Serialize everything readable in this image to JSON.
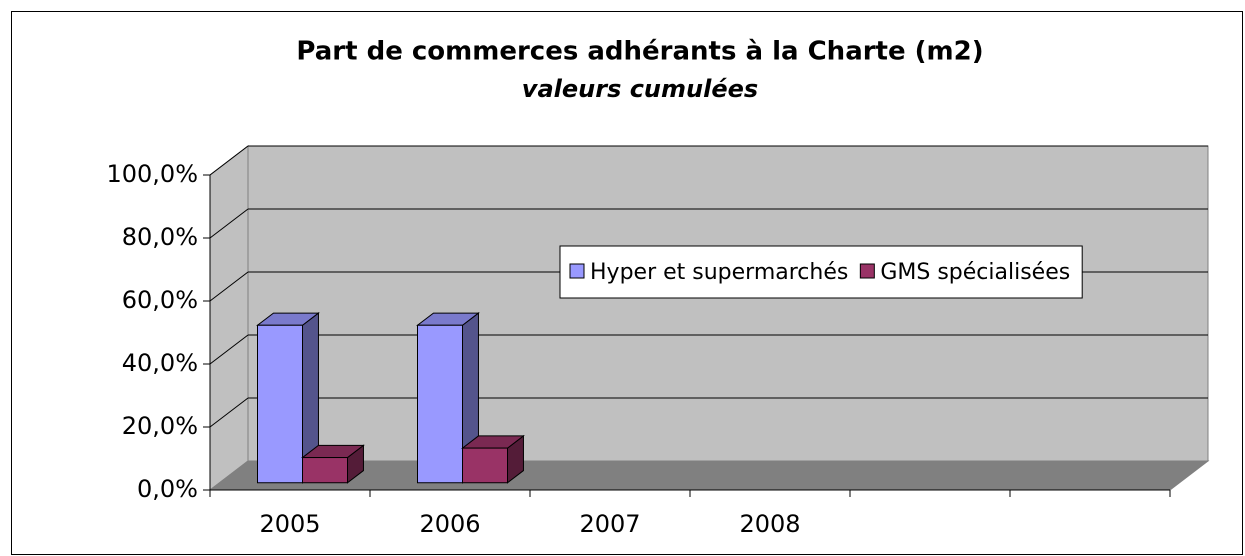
{
  "chart_data": {
    "type": "bar3d",
    "title": "Part de commerces adhérants à la Charte (m2)",
    "subtitle": "valeurs cumulées",
    "categories": [
      "2005",
      "2006",
      "2007",
      "2008",
      null,
      null
    ],
    "series": [
      {
        "name": "Hyper et supermarchés",
        "color": "#9999ff",
        "values": [
          50,
          50,
          null,
          null,
          null,
          null
        ]
      },
      {
        "name": "GMS spécialisées",
        "color": "#993366",
        "values": [
          8,
          11,
          null,
          null,
          null,
          null
        ]
      }
    ],
    "ylim": [
      0,
      100
    ],
    "yticks": [
      {
        "value": 0,
        "label": "0,0%"
      },
      {
        "value": 20,
        "label": "20,0%"
      },
      {
        "value": 40,
        "label": "40,0%"
      },
      {
        "value": 60,
        "label": "60,0%"
      },
      {
        "value": 80,
        "label": "80,0%"
      },
      {
        "value": 100,
        "label": "100,0%"
      }
    ],
    "grid": true,
    "legend": "right"
  }
}
